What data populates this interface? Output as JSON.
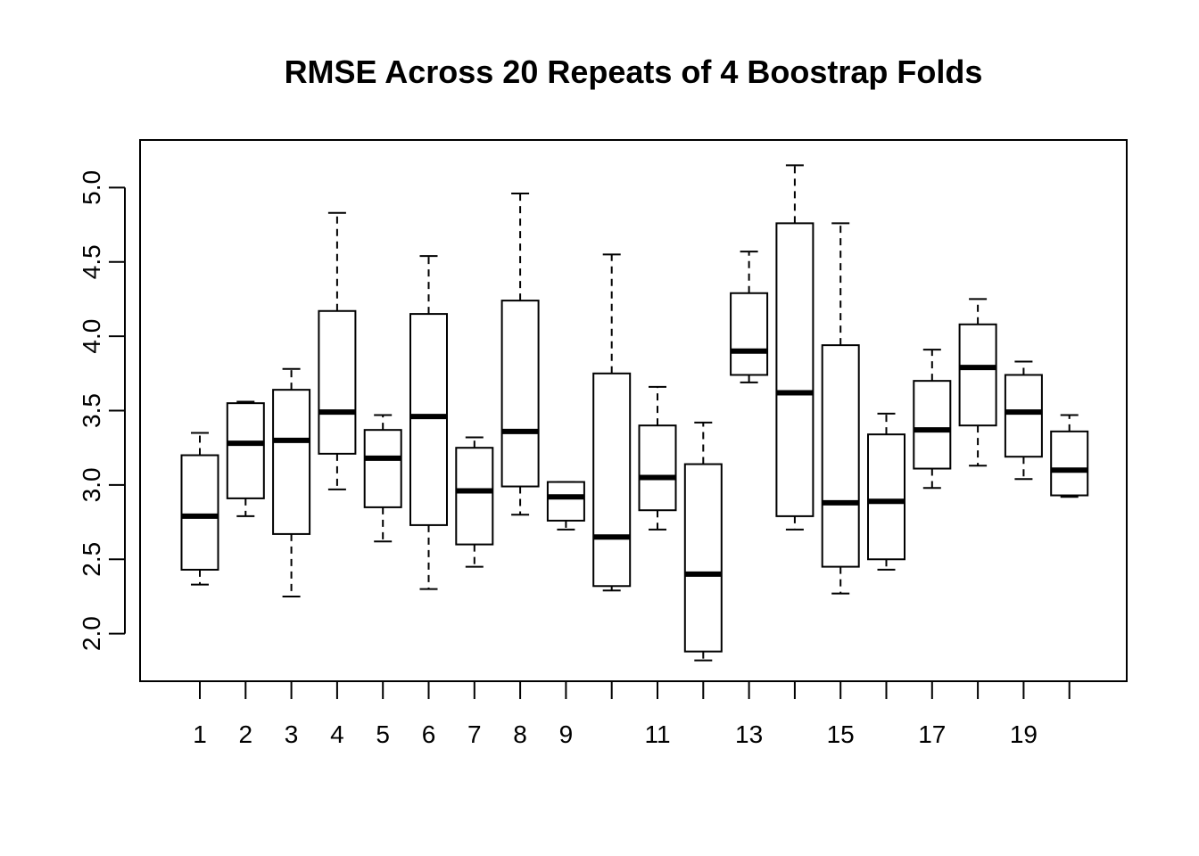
{
  "chart_data": {
    "type": "boxplot",
    "title": "RMSE Across 20 Repeats of 4 Boostrap Folds",
    "xlabel": "",
    "ylabel": "",
    "categories": [
      "1",
      "2",
      "3",
      "4",
      "5",
      "6",
      "7",
      "8",
      "9",
      "10",
      "11",
      "12",
      "13",
      "14",
      "15",
      "16",
      "17",
      "18",
      "19",
      "20"
    ],
    "x_tick_labels_shown": [
      "1",
      "2",
      "3",
      "4",
      "5",
      "6",
      "7",
      "8",
      "9",
      "",
      "11",
      "",
      "13",
      "",
      "15",
      "",
      "17",
      "",
      "19",
      ""
    ],
    "y_ticks": [
      "2.0",
      "2.5",
      "3.0",
      "3.5",
      "4.0",
      "4.5",
      "5.0"
    ],
    "ylim": [
      1.68,
      5.32
    ],
    "grid": false,
    "boxes": [
      {
        "category": "1",
        "low": 2.33,
        "q1": 2.43,
        "median": 2.79,
        "q3": 3.2,
        "high": 3.35
      },
      {
        "category": "2",
        "low": 2.79,
        "q1": 2.91,
        "median": 3.28,
        "q3": 3.55,
        "high": 3.56
      },
      {
        "category": "3",
        "low": 2.25,
        "q1": 2.67,
        "median": 3.3,
        "q3": 3.64,
        "high": 3.78
      },
      {
        "category": "4",
        "low": 2.97,
        "q1": 3.21,
        "median": 3.49,
        "q3": 4.17,
        "high": 4.83
      },
      {
        "category": "5",
        "low": 2.62,
        "q1": 2.85,
        "median": 3.18,
        "q3": 3.37,
        "high": 3.47
      },
      {
        "category": "6",
        "low": 2.3,
        "q1": 2.73,
        "median": 3.46,
        "q3": 4.15,
        "high": 4.54
      },
      {
        "category": "7",
        "low": 2.45,
        "q1": 2.6,
        "median": 2.96,
        "q3": 3.25,
        "high": 3.32
      },
      {
        "category": "8",
        "low": 2.8,
        "q1": 2.99,
        "median": 3.36,
        "q3": 4.24,
        "high": 4.96
      },
      {
        "category": "9",
        "low": 2.7,
        "q1": 2.76,
        "median": 2.92,
        "q3": 3.02,
        "high": 3.02
      },
      {
        "category": "10",
        "low": 2.29,
        "q1": 2.32,
        "median": 2.65,
        "q3": 3.75,
        "high": 4.55
      },
      {
        "category": "11",
        "low": 2.7,
        "q1": 2.83,
        "median": 3.05,
        "q3": 3.4,
        "high": 3.66
      },
      {
        "category": "12",
        "low": 1.82,
        "q1": 1.88,
        "median": 2.4,
        "q3": 3.14,
        "high": 3.42
      },
      {
        "category": "13",
        "low": 3.69,
        "q1": 3.74,
        "median": 3.9,
        "q3": 4.29,
        "high": 4.57
      },
      {
        "category": "14",
        "low": 2.7,
        "q1": 2.79,
        "median": 3.62,
        "q3": 4.76,
        "high": 5.15
      },
      {
        "category": "15",
        "low": 2.27,
        "q1": 2.45,
        "median": 2.88,
        "q3": 3.94,
        "high": 4.76
      },
      {
        "category": "16",
        "low": 2.43,
        "q1": 2.5,
        "median": 2.89,
        "q3": 3.34,
        "high": 3.48
      },
      {
        "category": "17",
        "low": 2.98,
        "q1": 3.11,
        "median": 3.37,
        "q3": 3.7,
        "high": 3.91
      },
      {
        "category": "18",
        "low": 3.13,
        "q1": 3.4,
        "median": 3.79,
        "q3": 4.08,
        "high": 4.25
      },
      {
        "category": "19",
        "low": 3.04,
        "q1": 3.19,
        "median": 3.49,
        "q3": 3.74,
        "high": 3.83
      },
      {
        "category": "20",
        "low": 2.92,
        "q1": 2.93,
        "median": 3.1,
        "q3": 3.36,
        "high": 3.47
      }
    ]
  }
}
